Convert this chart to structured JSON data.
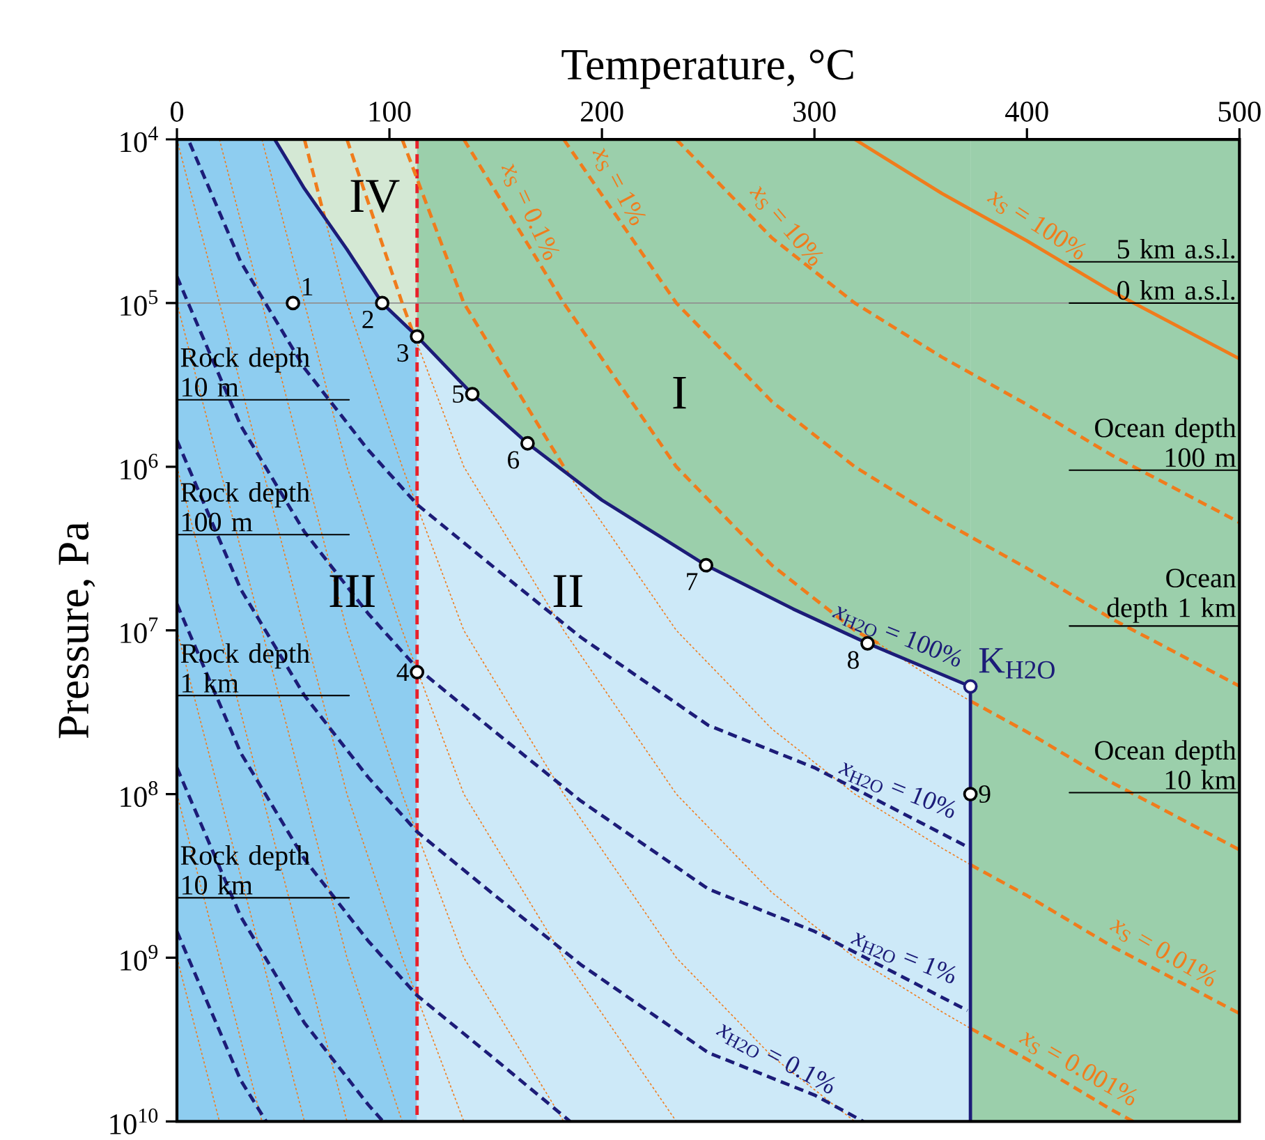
{
  "chart_data": {
    "type": "line",
    "xlabel": "Temperature, °C",
    "ylabel": "Pressure, Pa",
    "xlim": [
      0,
      500
    ],
    "ylim": [
      10000000000.0,
      10000.0
    ],
    "log": "y",
    "xticks": [
      0,
      100,
      200,
      300,
      400,
      500
    ],
    "yticks": [
      {
        "value": 10000.0,
        "label": "10$^{4}$"
      },
      {
        "value": 100000.0,
        "label": "10$^{5}$"
      },
      {
        "value": 1000000.0,
        "label": "10$^{6}$"
      },
      {
        "value": 10000000.0,
        "label": "10$^{7}$"
      },
      {
        "value": 100000000.0,
        "label": "10$^{8}$"
      },
      {
        "value": 1000000000.0,
        "label": "10$^{9}$"
      },
      {
        "value": 10000000000.0,
        "label": "10$^{10}$"
      }
    ],
    "bands": [
      {
        "axis": "x",
        "from": 0,
        "to": 113,
        "color": "#8ecdf0"
      },
      {
        "axis": "x",
        "from": 113,
        "to": 373.4,
        "color": "#cde9f8"
      },
      {
        "axis": "x",
        "from": 373.4,
        "to": 500,
        "color": "#9bcfab"
      }
    ],
    "ref_lines": [
      {
        "axis": "x",
        "value": 113,
        "color": "#e8202a",
        "line_style": "dashed"
      },
      {
        "axis": "y",
        "value": 100000.0,
        "color": "#909090",
        "line_style": "solid"
      }
    ],
    "series": [
      {
        "type": "area",
        "color": "#d4e8d4",
        "x": [
          46,
          60,
          80,
          96.6,
          113
        ],
        "values": [
          10000.0,
          20000.0,
          47000.0,
          100000.0,
          160000.0
        ]
      },
      {
        "type": "area",
        "color": "#9bcfab",
        "x": [
          113,
          125,
          150,
          180,
          220,
          270,
          310,
          350,
          373.4
        ],
        "values": [
          160000.0,
          230000.0,
          490000.0,
          1050000.0,
          2400000.0,
          5500000.0,
          9800000.0,
          16600000.0,
          22000000.0
        ]
      },
      {
        "color": "#f07c1c",
        "line_style": "dotted",
        "x": [
          330,
          360,
          373.4
        ],
        "values": [
          12000000.0,
          21400000.0,
          27000000.0
        ]
      },
      {
        "color": "#f07c1c",
        "line_style": "dotted",
        "x": [
          184,
          235,
          280,
          319,
          360,
          373.4
        ],
        "values": [
          1100000.0,
          10000000.0,
          40000000.0,
          100000000.0,
          214000000.0,
          270000000.0
        ]
      },
      {
        "color": "#f07c1c",
        "line_style": "dotted",
        "x": [
          111,
          135,
          182,
          235,
          280,
          319,
          360,
          373.4
        ],
        "values": [
          150000.0,
          1000000.0,
          10000000.0,
          100000000.0,
          400000000.0,
          1000000000.0,
          2140000000.0,
          2700000000.0
        ]
      },
      {
        "color": "#f07c1c",
        "line_style": "dotted",
        "x": [
          69.5,
          80,
          106,
          135,
          182,
          235,
          280,
          319
        ],
        "values": [
          30000.0,
          100000.0,
          1000000.0,
          10000000.0,
          100000000.0,
          1000000000.0,
          4000000000.0,
          10000000000.0
        ]
      },
      {
        "color": "#f07c1c",
        "line_style": "dotted",
        "x": [
          40,
          60,
          80,
          106,
          135,
          182,
          235
        ],
        "values": [
          10000.0,
          100000.0,
          1000000.0,
          10000000.0,
          100000000.0,
          1000000000.0,
          10000000000.0
        ]
      },
      {
        "color": "#f07c1c",
        "line_style": "dotted",
        "x": [
          20,
          40,
          60,
          80,
          106,
          135,
          182
        ],
        "values": [
          10000.0,
          100000.0,
          1000000.0,
          10000000.0,
          100000000.0,
          1000000000.0,
          10000000000.0
        ]
      },
      {
        "color": "#f07c1c",
        "line_style": "dotted",
        "x": [
          0,
          20,
          40,
          60,
          80,
          106,
          135
        ],
        "values": [
          10000.0,
          100000.0,
          1000000.0,
          10000000.0,
          100000000.0,
          1000000000.0,
          10000000000.0
        ]
      },
      {
        "color": "#f07c1c",
        "line_style": "dotted",
        "x": [
          0,
          20,
          40,
          60,
          80,
          106
        ],
        "values": [
          100000.0,
          1000000.0,
          10000000.0,
          100000000.0,
          1000000000.0,
          10000000000.0
        ]
      },
      {
        "color": "#f07c1c",
        "line_style": "dotted",
        "x": [
          0,
          20,
          40,
          60,
          80
        ],
        "values": [
          1000000.0,
          10000000.0,
          100000000.0,
          1000000000.0,
          10000000000.0
        ]
      },
      {
        "color": "#f07c1c",
        "line_style": "dotted",
        "x": [
          0,
          20,
          40,
          60
        ],
        "values": [
          10000000.0,
          100000000.0,
          1000000000.0,
          10000000000.0
        ]
      },
      {
        "color": "#f07c1c",
        "line_style": "dotted",
        "x": [
          0,
          20,
          40
        ],
        "values": [
          100000000.0,
          1000000000.0,
          10000000000.0
        ]
      },
      {
        "color": "#f07c1c",
        "line_style": "dotted",
        "x": [
          0,
          20
        ],
        "values": [
          1000000000.0,
          10000000000.0
        ]
      },
      {
        "color": "#f07c1c",
        "line_style": "dashed",
        "x": [
          235,
          280,
          319,
          360,
          400,
          440,
          500
        ],
        "values": [
          10000.0,
          40000.0,
          100000.0,
          214000.0,
          417000.0,
          851000.0,
          2190000.0
        ]
      },
      {
        "color": "#f07c1c",
        "line_style": "dashed",
        "x": [
          182,
          235,
          280,
          319,
          360,
          400,
          440,
          500
        ],
        "values": [
          10000.0,
          100000.0,
          400000.0,
          1000000.0,
          2140000.0,
          4170000.0,
          8510000.0,
          21900000.0
        ]
      },
      {
        "color": "#f07c1c",
        "line_style": "dashed",
        "x": [
          135,
          182,
          235,
          280,
          319,
          330
        ],
        "values": [
          10000.0,
          100000.0,
          1000000.0,
          4000000.0,
          10000000.0,
          12000000.0
        ]
      },
      {
        "color": "#f07c1c",
        "line_style": "dashed",
        "x": [
          373.4,
          400,
          440,
          500
        ],
        "values": [
          27000000.0,
          41700000.0,
          85100000.0,
          219000000.0
        ]
      },
      {
        "color": "#f07c1c",
        "line_style": "dashed",
        "x": [
          106,
          135,
          184
        ],
        "values": [
          10000.0,
          100000.0,
          1100000.0
        ]
      },
      {
        "color": "#f07c1c",
        "line_style": "dashed",
        "x": [
          373.4,
          400,
          440,
          500
        ],
        "values": [
          270000000.0,
          417000000.0,
          851000000.0,
          2190000000.0
        ]
      },
      {
        "color": "#f07c1c",
        "line_style": "dashed",
        "x": [
          80,
          106,
          111
        ],
        "values": [
          10000.0,
          100000.0,
          150000.0
        ]
      },
      {
        "color": "#f07c1c",
        "line_style": "dashed",
        "x": [
          373.4,
          400,
          440,
          450
        ],
        "values": [
          2700000000.0,
          4170000000.0,
          8510000000.0,
          10000000000.0
        ]
      },
      {
        "color": "#f07c1c",
        "line_style": "dashed",
        "x": [
          60,
          69.5
        ],
        "values": [
          10000.0,
          30000.0
        ]
      },
      {
        "color": "#f07c1c",
        "line_style": "solid",
        "x": [
          319,
          360,
          400,
          440,
          500
        ],
        "values": [
          10000.0,
          21400.0,
          41700.0,
          85100.0,
          219000.0
        ]
      },
      {
        "color": "#1c1c78",
        "line_style": "dashed",
        "x": [
          6,
          30,
          60,
          90,
          113,
          150,
          190,
          250,
          300,
          372
        ],
        "values": [
          10500.0,
          56000.0,
          250000.0,
          790000.0,
          1700000.0,
          4200000.0,
          11000000.0,
          38000000.0,
          69000000.0,
          210000000.0
        ]
      },
      {
        "color": "#1c1c78",
        "line_style": "dashed",
        "x": [
          0,
          6,
          30,
          60,
          90,
          113,
          150,
          190,
          250,
          300,
          372
        ],
        "values": [
          69000.0,
          105000.0,
          560000.0,
          2500000.0,
          7900000.0,
          17000000.0,
          42000000.0,
          110000000.0,
          380000000.0,
          690000000.0,
          2100000000.0
        ]
      },
      {
        "color": "#1c1c78",
        "line_style": "dashed",
        "x": [
          0,
          6,
          30,
          60,
          90,
          113,
          150,
          190,
          250,
          300,
          323
        ],
        "values": [
          690000.0,
          1050000.0,
          5600000.0,
          25000000.0,
          79000000.0,
          170000000.0,
          420000000.0,
          1100000000.0,
          3800000000.0,
          6900000000.0,
          10000000000.0
        ]
      },
      {
        "color": "#1c1c78",
        "line_style": "dashed",
        "x": [
          0,
          6,
          30,
          60,
          90,
          113,
          150,
          185
        ],
        "values": [
          6900000.0,
          10500000.0,
          56000000.0,
          250000000.0,
          790000000.0,
          1700000000.0,
          4200000000.0,
          10000000000.0
        ]
      },
      {
        "color": "#1c1c78",
        "line_style": "dashed",
        "x": [
          0,
          6,
          30,
          60,
          90,
          97
        ],
        "values": [
          69000000.0,
          105000000.0,
          560000000.0,
          2500000000.0,
          7900000000.0,
          10000000000.0
        ]
      },
      {
        "color": "#1c1c78",
        "line_style": "dashed",
        "x": [
          0,
          6,
          30,
          42
        ],
        "values": [
          690000000.0,
          1050000000.0,
          5600000000.0,
          10000000000.0
        ]
      },
      {
        "color": "#000000",
        "line_style": "solid",
        "x": [
          0,
          81
        ],
        "values": [
          390000.0,
          390000.0
        ]
      },
      {
        "color": "#000000",
        "line_style": "solid",
        "x": [
          0,
          81
        ],
        "values": [
          2600000.0,
          2600000.0
        ]
      },
      {
        "color": "#000000",
        "line_style": "solid",
        "x": [
          0,
          81
        ],
        "values": [
          25000000.0,
          25000000.0
        ]
      },
      {
        "color": "#000000",
        "line_style": "solid",
        "x": [
          0,
          81
        ],
        "values": [
          430000000.0,
          430000000.0
        ]
      },
      {
        "color": "#000000",
        "line_style": "solid",
        "x": [
          420,
          500
        ],
        "values": [
          56000.0,
          56000.0
        ]
      },
      {
        "color": "#000000",
        "line_style": "solid",
        "x": [
          420,
          500
        ],
        "values": [
          100000.0,
          100000.0
        ]
      },
      {
        "color": "#000000",
        "line_style": "solid",
        "x": [
          420,
          500
        ],
        "values": [
          1050000.0,
          1050000.0
        ]
      },
      {
        "color": "#000000",
        "line_style": "solid",
        "x": [
          420,
          500
        ],
        "values": [
          9400000.0,
          9400000.0
        ]
      },
      {
        "color": "#000000",
        "line_style": "solid",
        "x": [
          420,
          500
        ],
        "values": [
          98000000.0,
          98000000.0
        ]
      },
      {
        "color": "#1c1c78",
        "line_style": "solid",
        "x": [
          46,
          60,
          80,
          96.6,
          113,
          139,
          165,
          200,
          249,
          290,
          325,
          373.4
        ],
        "values": [
          10000.0,
          20000.0,
          47000.0,
          100000.0,
          160000.0,
          360000.0,
          720000.0,
          1600000.0,
          4000000.0,
          7400000.0,
          12000000.0,
          22000000.0
        ]
      },
      {
        "color": "#1c1c78",
        "line_style": "solid",
        "x": [
          373.4,
          373.4
        ],
        "values": [
          22000000.0,
          10000000000.0
        ]
      },
      {
        "type": "scatter",
        "color": "#000000",
        "marker": "circle",
        "x": [
          54.6,
          96.6,
          113,
          113,
          139,
          165,
          249,
          325,
          373.4
        ],
        "values": [
          100000.0,
          100000.0,
          160000.0,
          18000000.0,
          360000.0,
          720000.0,
          4000000.0,
          12000000.0,
          100000000.0
        ]
      },
      {
        "type": "scatter",
        "color": "#1c1c78",
        "marker": "circle",
        "x": [
          373.4
        ],
        "values": [
          22000000.0
        ]
      }
    ],
    "annotations": [
      "I",
      "II",
      "III",
      "IV",
      {
        "text": "1",
        "x": 54.6,
        "y": 100000.0
      },
      {
        "text": "2",
        "x": 96.6,
        "y": 100000.0
      },
      {
        "text": "3",
        "x": 113,
        "y": 160000.0
      },
      {
        "text": "4",
        "x": 113,
        "y": 18000000.0
      },
      {
        "text": "5",
        "x": 139,
        "y": 360000.0
      },
      {
        "text": "6",
        "x": 165,
        "y": 720000.0
      },
      {
        "text": "7",
        "x": 249,
        "y": 4000000.0
      },
      {
        "text": "8",
        "x": 325,
        "y": 12000000.0
      },
      {
        "text": "9",
        "x": 373.4,
        "y": 100000000.0
      },
      {
        "text": "K$_{H2O}$",
        "x": 373.4,
        "y": 22000000.0
      },
      {
        "text": "*x*$_{S}$ = 100%",
        "x": 400,
        "y": 41700.0
      },
      {
        "text": "*x*$_{S}$ = 10%",
        "x": 280,
        "y": 40000.0
      },
      {
        "text": "*x*$_{S}$ = 1%",
        "x": 200,
        "y": 22000.0
      },
      {
        "text": "*x*$_{S}$ = 0.1%",
        "x": 158,
        "y": 31000.0
      },
      {
        "text": "*x*$_{S}$ = 0.01%",
        "x": 460,
        "y": 1170000000.0
      },
      {
        "text": "*x*$_{S}$ = 0.001%",
        "x": 420,
        "y": 5960000000.0
      },
      {
        "text": "*x*$_{H2O}$ = 100%",
        "x": 336,
        "y": 13800000.0
      },
      {
        "text": "*x*$_{H2O}$ = 10%",
        "x": 336,
        "y": 120000000.0
      },
      {
        "text": "*x*$_{H2O}$ = 1%",
        "x": 339,
        "y": 1270000000.0
      },
      {
        "text": "*x*$_{H2O}$ = 0.1%",
        "x": 278,
        "y": 5200000000.0
      },
      {
        "text": "Rock depth 10 m",
        "x": 0,
        "y": 390000.0
      },
      {
        "text": "Rock depth 100 m",
        "x": 0,
        "y": 2600000.0
      },
      {
        "text": "Rock depth 1 km",
        "x": 0,
        "y": 25000000.0
      },
      {
        "text": "Rock depth 10 km",
        "x": 0,
        "y": 430000000.0
      },
      {
        "text": "5 km a.s.l.",
        "x": 500,
        "y": 56000.0
      },
      {
        "text": "0 km a.s.l.",
        "x": 500,
        "y": 100000.0
      },
      {
        "text": "Ocean depth 100 m",
        "x": 500,
        "y": 1050000.0
      },
      {
        "text": "Ocean depth 1 km",
        "x": 500,
        "y": 9400000.0
      },
      {
        "text": "Ocean depth 10 km",
        "x": 500,
        "y": 98000000.0
      }
    ]
  }
}
